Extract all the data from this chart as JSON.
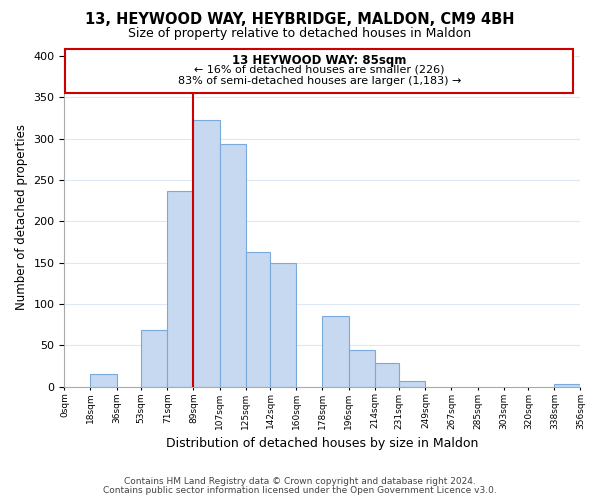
{
  "title": "13, HEYWOOD WAY, HEYBRIDGE, MALDON, CM9 4BH",
  "subtitle": "Size of property relative to detached houses in Maldon",
  "xlabel": "Distribution of detached houses by size in Maldon",
  "ylabel": "Number of detached properties",
  "bar_edges": [
    0,
    18,
    36,
    53,
    71,
    89,
    107,
    125,
    142,
    160,
    178,
    196,
    214,
    231,
    249,
    267,
    285,
    303,
    320,
    338,
    356
  ],
  "bar_heights": [
    0,
    15,
    0,
    68,
    237,
    322,
    293,
    163,
    149,
    0,
    85,
    45,
    29,
    7,
    0,
    0,
    0,
    0,
    0,
    3
  ],
  "bar_color": "#c6d9f0",
  "bar_edgecolor": "#7aaadc",
  "vline_x": 89,
  "vline_color": "#cc0000",
  "annotation_title": "13 HEYWOOD WAY: 85sqm",
  "annotation_line1": "← 16% of detached houses are smaller (226)",
  "annotation_line2": "83% of semi-detached houses are larger (1,183) →",
  "annotation_box_edgecolor": "#cc0000",
  "annotation_box_facecolor": "#ffffff",
  "ylim": [
    0,
    410
  ],
  "yticks": [
    0,
    50,
    100,
    150,
    200,
    250,
    300,
    350,
    400
  ],
  "xtick_labels": [
    "0sqm",
    "18sqm",
    "36sqm",
    "53sqm",
    "71sqm",
    "89sqm",
    "107sqm",
    "125sqm",
    "142sqm",
    "160sqm",
    "178sqm",
    "196sqm",
    "214sqm",
    "231sqm",
    "249sqm",
    "267sqm",
    "285sqm",
    "303sqm",
    "320sqm",
    "338sqm",
    "356sqm"
  ],
  "footer_line1": "Contains HM Land Registry data © Crown copyright and database right 2024.",
  "footer_line2": "Contains public sector information licensed under the Open Government Licence v3.0.",
  "background_color": "#ffffff",
  "grid_color": "#dce8f5"
}
